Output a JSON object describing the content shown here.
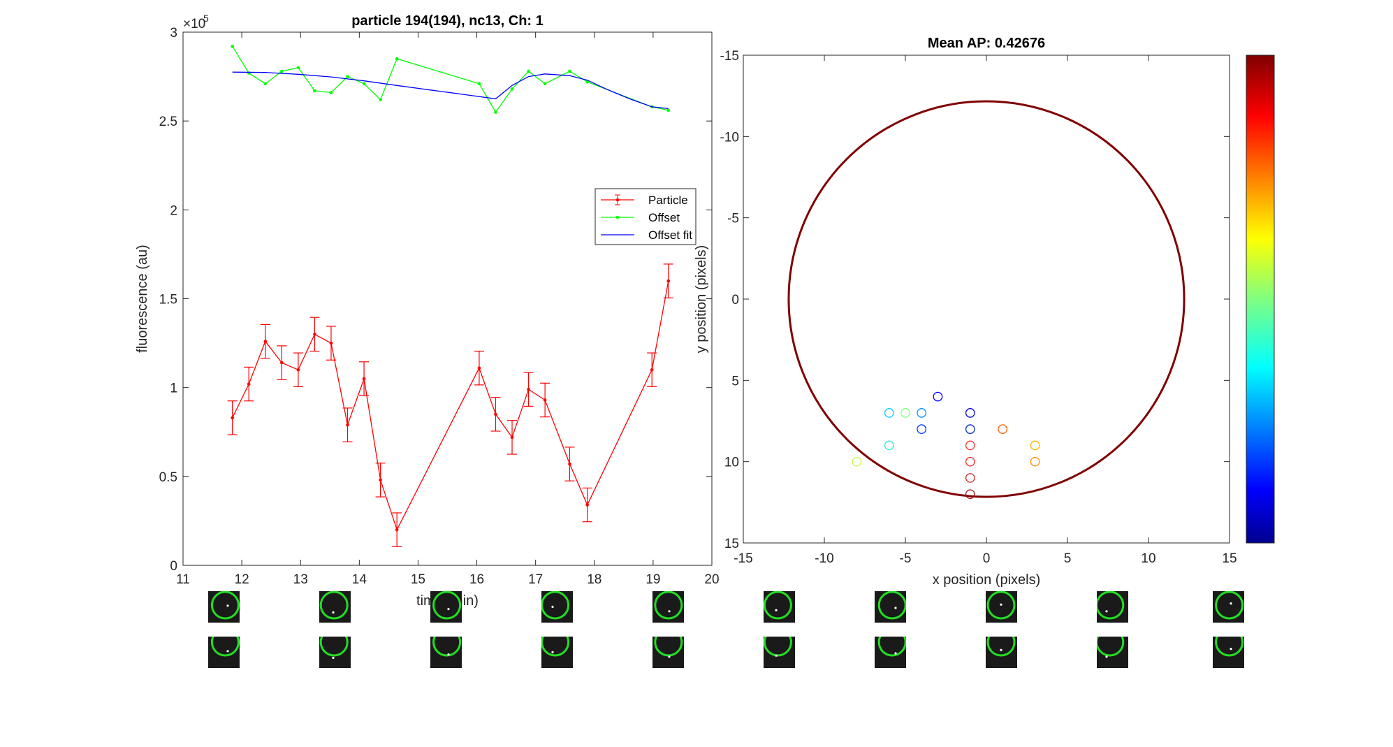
{
  "chart_data": [
    {
      "type": "line",
      "title": "particle 194(194), nc13, Ch: 1",
      "xlabel": "time (min)",
      "ylabel": "fluorescence (au)",
      "xlim": [
        11,
        20
      ],
      "ylim": [
        0,
        300000
      ],
      "x_ticks": [
        11,
        12,
        13,
        14,
        15,
        16,
        17,
        18,
        19,
        20
      ],
      "y_ticks": [
        0,
        50000,
        100000,
        150000,
        200000,
        250000,
        300000
      ],
      "y_tick_labels": [
        "0",
        "0.5",
        "1",
        "1.5",
        "2",
        "2.5",
        "3"
      ],
      "y_exponent_label": "×10",
      "y_exponent_power": "5",
      "grid": false,
      "legend_position": "right",
      "series": [
        {
          "name": "Particle",
          "color": "#ff0000",
          "marker": "dot",
          "error_bars": true,
          "x": [
            11.84,
            12.12,
            12.4,
            12.68,
            12.96,
            13.24,
            13.52,
            13.8,
            14.08,
            14.36,
            14.64,
            16.04,
            16.32,
            16.6,
            16.88,
            17.16,
            17.58,
            17.88,
            18.98,
            19.26
          ],
          "y": [
            83000,
            102000,
            126000,
            114000,
            110000,
            130000,
            125000,
            79000,
            105000,
            48000,
            20000,
            111000,
            85000,
            72000,
            99000,
            93000,
            57000,
            34000,
            110000,
            160000
          ],
          "err": [
            9500,
            9500,
            9500,
            9500,
            9500,
            9500,
            9500,
            9500,
            9500,
            9500,
            9500,
            9500,
            9500,
            9500,
            9500,
            9500,
            9500,
            9500,
            9500,
            9500
          ]
        },
        {
          "name": "Offset",
          "color": "#00ff00",
          "marker": "dot",
          "x": [
            11.84,
            12.12,
            12.4,
            12.68,
            12.96,
            13.24,
            13.52,
            13.8,
            14.08,
            14.36,
            14.64,
            16.04,
            16.32,
            16.6,
            16.88,
            17.16,
            17.58,
            17.88,
            18.98,
            19.26
          ],
          "y": [
            292000,
            277000,
            271000,
            278000,
            280000,
            267000,
            266000,
            275000,
            271000,
            262000,
            285000,
            271000,
            255000,
            268000,
            278000,
            271000,
            278000,
            272000,
            258000,
            256000
          ]
        },
        {
          "name": "Offset fit",
          "color": "#0000ff",
          "marker": "none",
          "x": [
            11.84,
            12.4,
            12.96,
            13.52,
            14.08,
            14.64,
            15.2,
            15.76,
            16.32,
            16.6,
            16.88,
            17.16,
            17.58,
            17.88,
            18.2,
            18.6,
            18.98,
            19.26
          ],
          "y": [
            277500,
            277300,
            276300,
            274800,
            272600,
            270000,
            267500,
            265000,
            262500,
            270000,
            275000,
            276500,
            275500,
            273000,
            268000,
            262500,
            258000,
            257000
          ]
        }
      ]
    },
    {
      "type": "scatter",
      "title": "Mean AP: 0.42676",
      "xlabel": "x position (pixels)",
      "ylabel": "y position (pixels)",
      "xlim": [
        -15,
        15
      ],
      "ylim": [
        -15,
        15
      ],
      "y_reversed": true,
      "x_ticks": [
        -15,
        -10,
        -5,
        0,
        5,
        10,
        15
      ],
      "y_ticks": [
        -15,
        -10,
        -5,
        0,
        5,
        10,
        15
      ],
      "grid": false,
      "colormap": "jet",
      "colorbar_position": "right",
      "colorbar_ticks_shown": false,
      "circle": {
        "center": [
          0,
          0
        ],
        "radius": 12.2,
        "color": "#800000"
      },
      "points": [
        {
          "x": -3,
          "y": 6,
          "color": "#0000ff"
        },
        {
          "x": -6,
          "y": 7,
          "color": "#00ccff"
        },
        {
          "x": -5,
          "y": 7,
          "color": "#80ff80"
        },
        {
          "x": -4,
          "y": 7,
          "color": "#0090ff"
        },
        {
          "x": -1,
          "y": 7,
          "color": "#0000e0"
        },
        {
          "x": -4,
          "y": 8,
          "color": "#0040ff"
        },
        {
          "x": -1,
          "y": 8,
          "color": "#0030c0"
        },
        {
          "x": 1,
          "y": 8,
          "color": "#ff6000"
        },
        {
          "x": -6,
          "y": 9,
          "color": "#30e8d0"
        },
        {
          "x": -1,
          "y": 9,
          "color": "#ff3030"
        },
        {
          "x": 3,
          "y": 9,
          "color": "#ffb000"
        },
        {
          "x": -8,
          "y": 10,
          "color": "#c0ff40"
        },
        {
          "x": -1,
          "y": 10,
          "color": "#ff2020"
        },
        {
          "x": 3,
          "y": 10,
          "color": "#ff8c00"
        },
        {
          "x": -1,
          "y": 11,
          "color": "#d02020"
        },
        {
          "x": -1,
          "y": 12,
          "color": "#a01010"
        }
      ]
    }
  ],
  "thumbnails": {
    "rows": 2,
    "columns": 10,
    "ring_color": "#22dd22",
    "background_color": "#1a1a1a"
  }
}
